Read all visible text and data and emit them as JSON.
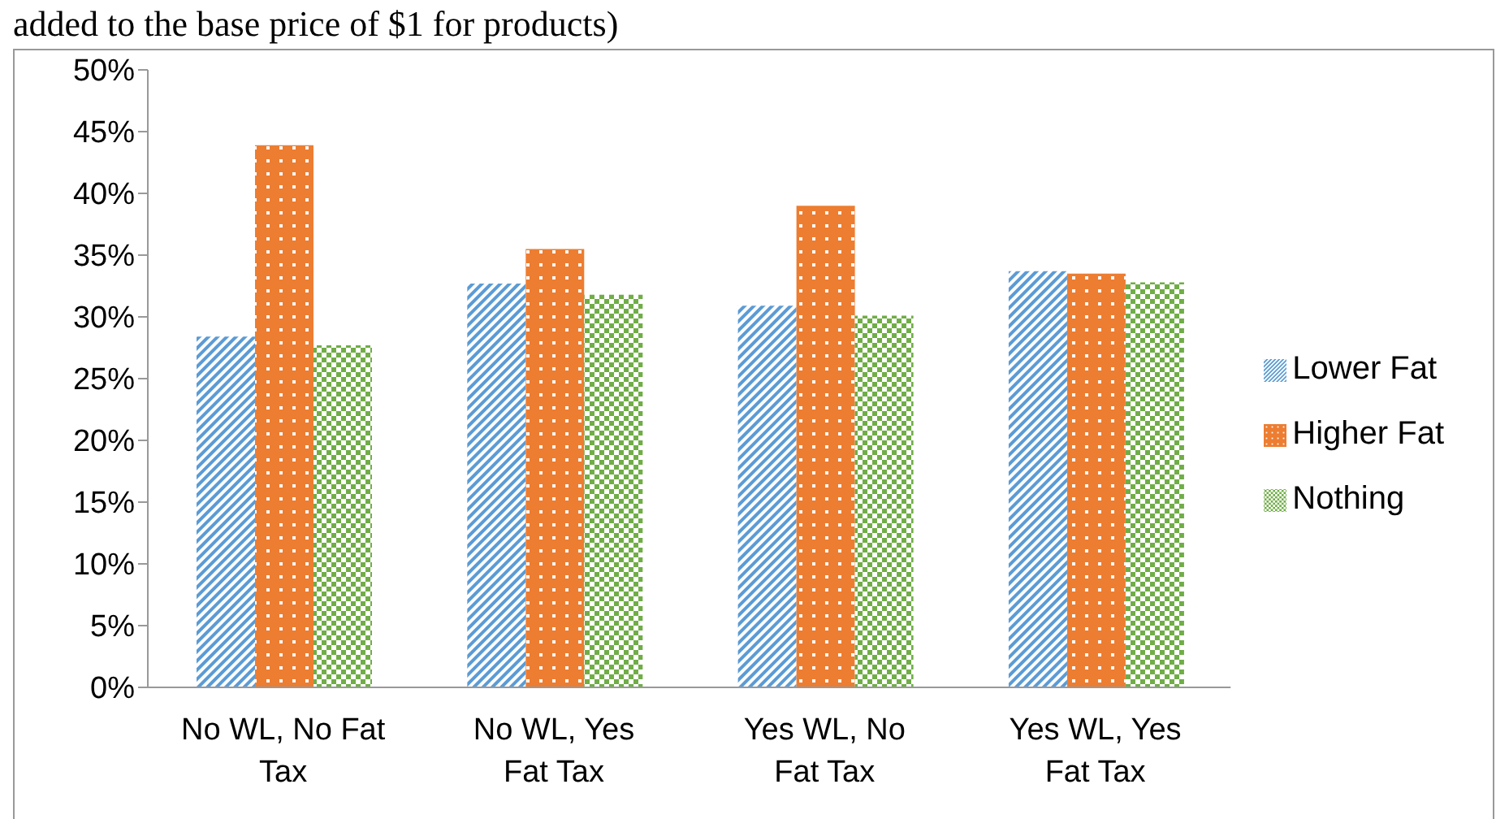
{
  "chart_data": {
    "type": "bar",
    "annotations": [
      "added to the base price of $1 for products)"
    ],
    "categories": [
      "No WL, No Fat Tax",
      "No WL, Yes Fat Tax",
      "Yes WL, No Fat Tax",
      "Yes WL, Yes Fat Tax"
    ],
    "series": [
      {
        "name": "Lower Fat",
        "color": "#5b9bd5",
        "values": [
          28.4,
          32.7,
          30.9,
          33.7
        ]
      },
      {
        "name": "Higher Fat",
        "color": "#ed7d31",
        "values": [
          43.9,
          35.5,
          39.0,
          33.5
        ]
      },
      {
        "name": "Nothing",
        "color": "#70ad47",
        "values": [
          27.7,
          31.8,
          30.1,
          32.8
        ]
      }
    ],
    "ylim": [
      0,
      50
    ],
    "yticks": [
      {
        "value": 0,
        "label": "0%"
      },
      {
        "value": 5,
        "label": "5%"
      },
      {
        "value": 10,
        "label": "10%"
      },
      {
        "value": 15,
        "label": "15%"
      },
      {
        "value": 20,
        "label": "20%"
      },
      {
        "value": 25,
        "label": "25%"
      },
      {
        "value": 30,
        "label": "30%"
      },
      {
        "value": 35,
        "label": "35%"
      },
      {
        "value": 40,
        "label": "40%"
      },
      {
        "value": 45,
        "label": "45%"
      },
      {
        "value": 50,
        "label": "50%"
      }
    ],
    "grid": false,
    "legend": "right"
  }
}
